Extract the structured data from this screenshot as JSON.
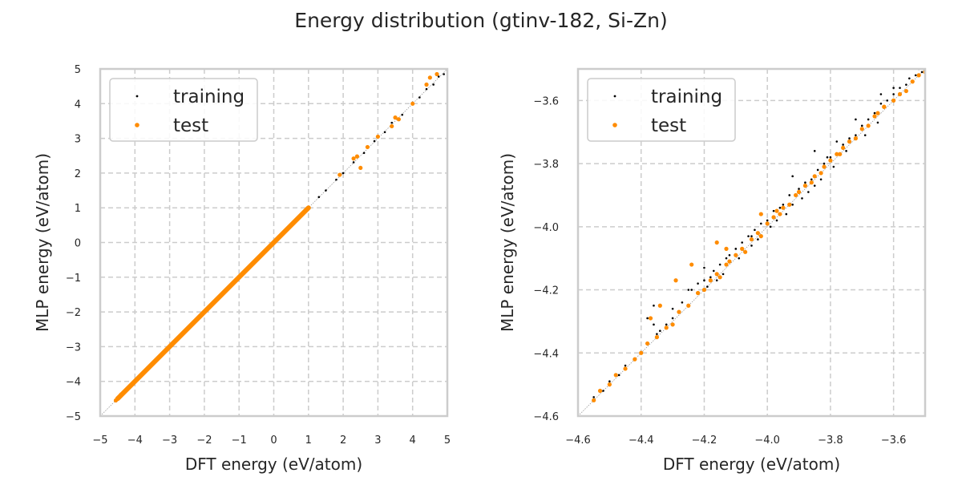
{
  "figure": {
    "title": "Energy distribution (gtinv-182, Si-Zn)"
  },
  "colors": {
    "training": "#000000",
    "test": "#ff8c00",
    "grid": "#cccccc",
    "frame": "#cccccc",
    "diagonal": "#999999"
  },
  "chart_data": [
    {
      "type": "scatter",
      "xlabel": "DFT energy (eV/atom)",
      "ylabel": "MLP energy (eV/atom)",
      "xlim": [
        -5,
        5
      ],
      "ylim": [
        -5,
        5
      ],
      "xticks": [
        -5,
        -4,
        -3,
        -2,
        -1,
        0,
        1,
        2,
        3,
        4,
        5
      ],
      "yticks": [
        -5,
        -4,
        -3,
        -2,
        -1,
        0,
        1,
        2,
        3,
        4,
        5
      ],
      "xtick_labels": [
        "−5",
        "−4",
        "−3",
        "−2",
        "−1",
        "0",
        "1",
        "2",
        "3",
        "4",
        "5"
      ],
      "ytick_labels": [
        "−5",
        "−4",
        "−3",
        "−2",
        "−1",
        "0",
        "1",
        "2",
        "3",
        "4",
        "5"
      ],
      "grid": true,
      "legend": "top-left",
      "diagonal": true,
      "series": [
        {
          "name": "training",
          "color": "#000000",
          "x": [
            -4.55,
            -4.5,
            -4.4,
            -4.3,
            -4.2,
            -4.1,
            -4.0,
            -3.8,
            -3.5,
            -3.2,
            -3.0,
            -2.7,
            -2.5,
            -2.2,
            -2.0,
            -1.7,
            -1.5,
            -1.2,
            -1.0,
            -0.7,
            -0.5,
            -0.3,
            0.0,
            0.3,
            0.5,
            0.8,
            1.0,
            1.3,
            1.5,
            1.8,
            2.0,
            2.3,
            2.6,
            2.9,
            3.2,
            3.4,
            3.7,
            4.0,
            4.2,
            4.4,
            4.6,
            4.75,
            4.9
          ],
          "y": [
            -4.54,
            -4.5,
            -4.41,
            -4.29,
            -4.21,
            -4.09,
            -4.0,
            -3.81,
            -3.49,
            -3.21,
            -3.0,
            -2.71,
            -2.49,
            -2.21,
            -2.0,
            -1.69,
            -1.5,
            -1.21,
            -1.0,
            -0.7,
            -0.5,
            -0.29,
            0.0,
            0.3,
            0.5,
            0.79,
            1.0,
            1.31,
            1.5,
            1.81,
            2.0,
            2.31,
            2.58,
            2.92,
            3.18,
            3.45,
            3.68,
            4.03,
            4.18,
            4.42,
            4.55,
            4.78,
            4.85
          ]
        },
        {
          "name": "test",
          "color": "#ff8c00",
          "x": [
            -4.55,
            -4.5,
            -4.45,
            -4.4,
            -4.3,
            -4.2,
            -4.1,
            -4.0,
            -3.9,
            -3.7,
            -3.5,
            -3.2,
            -3.0,
            -2.8,
            -2.5,
            -2.2,
            -2.0,
            -1.8,
            -1.5,
            -1.2,
            -1.0,
            -0.8,
            -0.5,
            -0.3,
            -0.1,
            0.0,
            0.2,
            0.4,
            0.6,
            0.8,
            1.0,
            1.9,
            2.3,
            2.4,
            2.5,
            2.7,
            3.0,
            3.4,
            3.5,
            3.6,
            4.0,
            4.4,
            4.5,
            4.7
          ],
          "y": [
            -4.55,
            -4.49,
            -4.45,
            -4.38,
            -4.3,
            -4.2,
            -4.1,
            -4.0,
            -3.9,
            -3.7,
            -3.5,
            -3.2,
            -3.0,
            -2.8,
            -2.5,
            -2.2,
            -2.0,
            -1.8,
            -1.5,
            -1.2,
            -1.0,
            -0.8,
            -0.5,
            -0.3,
            -0.1,
            0.0,
            0.2,
            0.4,
            0.6,
            0.8,
            1.0,
            1.95,
            2.42,
            2.48,
            2.15,
            2.75,
            3.05,
            3.35,
            3.6,
            3.55,
            4.0,
            4.55,
            4.75,
            4.85
          ]
        }
      ]
    },
    {
      "type": "scatter",
      "xlabel": "DFT energy (eV/atom)",
      "ylabel": "MLP energy (eV/atom)",
      "xlim": [
        -4.6,
        -3.5
      ],
      "ylim": [
        -4.6,
        -3.5
      ],
      "xticks": [
        -4.6,
        -4.4,
        -4.2,
        -4.0,
        -3.8,
        -3.6
      ],
      "yticks": [
        -4.6,
        -4.4,
        -4.2,
        -4.0,
        -3.8,
        -3.6
      ],
      "xtick_labels": [
        "−4.6",
        "−4.4",
        "−4.2",
        "−4.0",
        "−3.8",
        "−3.6"
      ],
      "ytick_labels": [
        "−4.6",
        "−4.4",
        "−4.2",
        "−4.0",
        "−3.8",
        "−3.6"
      ],
      "grid": true,
      "legend": "top-left",
      "diagonal": true,
      "series": [
        {
          "name": "training",
          "color": "#000000",
          "x": [
            -4.55,
            -4.52,
            -4.5,
            -4.47,
            -4.45,
            -4.42,
            -4.4,
            -4.38,
            -4.36,
            -4.35,
            -4.34,
            -4.32,
            -4.3,
            -4.3,
            -4.28,
            -4.27,
            -4.25,
            -4.24,
            -4.22,
            -4.2,
            -4.19,
            -4.18,
            -4.17,
            -4.16,
            -4.15,
            -4.14,
            -4.13,
            -4.12,
            -4.1,
            -4.09,
            -4.08,
            -4.07,
            -4.06,
            -4.05,
            -4.04,
            -4.03,
            -4.02,
            -4.0,
            -3.99,
            -3.98,
            -3.97,
            -3.96,
            -3.95,
            -3.94,
            -3.93,
            -3.92,
            -3.9,
            -3.89,
            -3.88,
            -3.87,
            -3.86,
            -3.85,
            -3.84,
            -3.83,
            -3.82,
            -3.8,
            -3.79,
            -3.78,
            -3.76,
            -3.75,
            -3.74,
            -3.72,
            -3.7,
            -3.69,
            -3.68,
            -3.66,
            -3.65,
            -3.64,
            -3.62,
            -3.6,
            -3.58,
            -3.56,
            -3.55,
            -3.53,
            -3.52,
            -3.51,
            -3.64,
            -3.72,
            -3.78,
            -3.92,
            -3.95,
            -4.05,
            -4.1,
            -4.2,
            -4.25,
            -4.36,
            -4.38,
            -3.85,
            -3.81,
            -3.6
          ],
          "y": [
            -4.54,
            -4.52,
            -4.49,
            -4.47,
            -4.44,
            -4.42,
            -4.4,
            -4.37,
            -4.31,
            -4.34,
            -4.33,
            -4.31,
            -4.29,
            -4.26,
            -4.27,
            -4.24,
            -4.25,
            -4.2,
            -4.18,
            -4.17,
            -4.19,
            -4.16,
            -4.14,
            -4.17,
            -4.12,
            -4.15,
            -4.1,
            -4.09,
            -4.07,
            -4.1,
            -4.05,
            -4.08,
            -4.03,
            -4.06,
            -4.01,
            -4.04,
            -3.99,
            -3.98,
            -4.0,
            -3.95,
            -3.98,
            -3.94,
            -3.93,
            -3.96,
            -3.9,
            -3.93,
            -3.88,
            -3.91,
            -3.86,
            -3.89,
            -3.85,
            -3.87,
            -3.82,
            -3.85,
            -3.8,
            -3.78,
            -3.81,
            -3.77,
            -3.74,
            -3.76,
            -3.72,
            -3.71,
            -3.68,
            -3.71,
            -3.66,
            -3.64,
            -3.67,
            -3.61,
            -3.6,
            -3.58,
            -3.56,
            -3.55,
            -3.53,
            -3.52,
            -3.5,
            -3.51,
            -3.58,
            -3.66,
            -3.73,
            -3.84,
            -3.94,
            -4.03,
            -4.07,
            -4.13,
            -4.2,
            -4.25,
            -4.29,
            -3.76,
            -3.78,
            -3.56
          ]
        },
        {
          "name": "test",
          "color": "#ff8c00",
          "x": [
            -4.55,
            -4.53,
            -4.5,
            -4.48,
            -4.45,
            -4.42,
            -4.4,
            -4.38,
            -4.35,
            -4.32,
            -4.3,
            -4.28,
            -4.25,
            -4.22,
            -4.2,
            -4.18,
            -4.16,
            -4.15,
            -4.13,
            -4.12,
            -4.1,
            -4.08,
            -4.07,
            -4.05,
            -4.03,
            -4.02,
            -4.0,
            -3.98,
            -3.96,
            -3.95,
            -3.93,
            -3.91,
            -3.9,
            -3.88,
            -3.86,
            -3.85,
            -3.83,
            -3.82,
            -3.8,
            -3.78,
            -3.76,
            -3.74,
            -3.72,
            -3.7,
            -3.68,
            -3.66,
            -3.65,
            -3.63,
            -3.6,
            -3.58,
            -3.56,
            -3.54,
            -3.52,
            -3.5,
            -4.37,
            -4.34,
            -4.29,
            -4.24,
            -4.16,
            -4.13,
            -4.02,
            -3.97,
            -3.77,
            -3.63
          ],
          "y": [
            -4.55,
            -4.52,
            -4.5,
            -4.47,
            -4.45,
            -4.42,
            -4.4,
            -4.37,
            -4.35,
            -4.32,
            -4.31,
            -4.27,
            -4.25,
            -4.21,
            -4.2,
            -4.17,
            -4.15,
            -4.16,
            -4.12,
            -4.11,
            -4.09,
            -4.07,
            -4.08,
            -4.04,
            -4.02,
            -4.03,
            -3.99,
            -3.97,
            -3.96,
            -3.94,
            -3.93,
            -3.9,
            -3.89,
            -3.87,
            -3.86,
            -3.84,
            -3.83,
            -3.81,
            -3.79,
            -3.77,
            -3.75,
            -3.73,
            -3.72,
            -3.69,
            -3.68,
            -3.65,
            -3.64,
            -3.62,
            -3.6,
            -3.58,
            -3.57,
            -3.54,
            -3.52,
            -3.51,
            -4.29,
            -4.25,
            -4.17,
            -4.12,
            -4.05,
            -4.07,
            -3.96,
            -3.95,
            -3.77,
            -3.62
          ]
        }
      ]
    }
  ]
}
